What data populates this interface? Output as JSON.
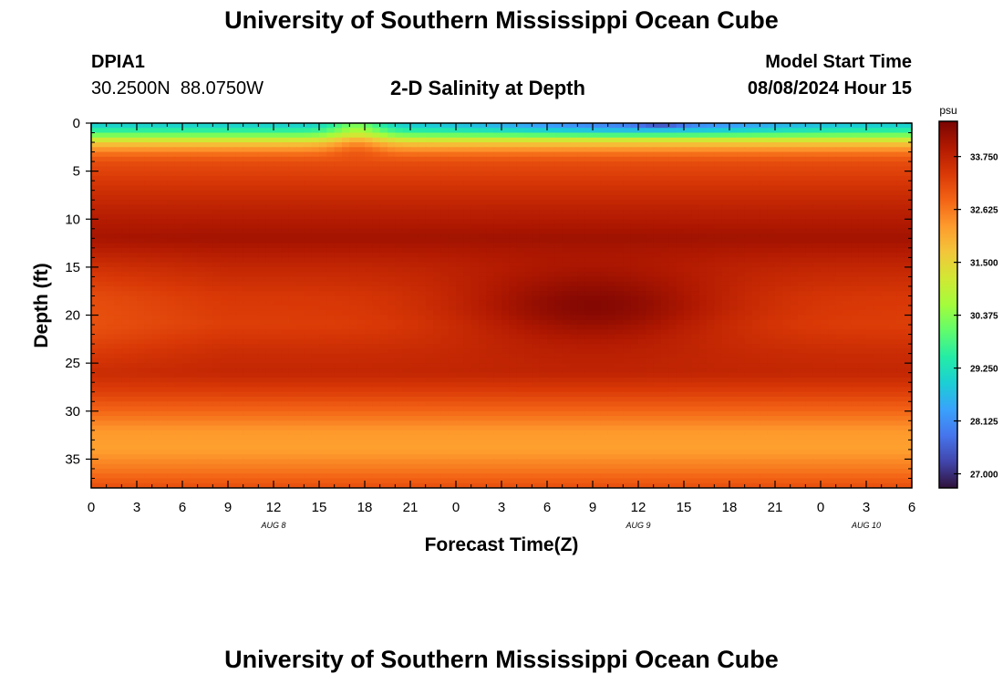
{
  "header": {
    "title": "University of Southern Mississippi Ocean Cube",
    "station_id": "DPIA1",
    "coordinates": "30.2500N  88.0750W",
    "chart_title": "2-D Salinity at Depth",
    "model_start_label": "Model Start Time",
    "model_start_value": "08/08/2024 Hour 15"
  },
  "footer": {
    "title": "University of Southern Mississippi Ocean Cube"
  },
  "colors": {
    "scale": [
      "#30123b",
      "#4145ab",
      "#4675ed",
      "#39a2fc",
      "#1bcfd4",
      "#24eca6",
      "#61fc6c",
      "#a4fc3b",
      "#d1e834",
      "#f3c63a",
      "#fe9b2d",
      "#f36315",
      "#d93806",
      "#b11901",
      "#7a0402"
    ]
  },
  "chart_data": {
    "type": "heatmap",
    "title": "2-D Salinity at Depth",
    "xlabel": "Forecast Time(Z)",
    "ylabel": "Depth (ft)",
    "x_range_hours": [
      0,
      54
    ],
    "x_tick_labels": [
      "0",
      "3",
      "6",
      "9",
      "12",
      "15",
      "18",
      "21",
      "0",
      "3",
      "6",
      "9",
      "12",
      "15",
      "18",
      "21",
      "0",
      "3",
      "6"
    ],
    "date_labels": [
      {
        "text": "AUG 8",
        "hour": 12
      },
      {
        "text": "AUG 9",
        "hour": 36
      },
      {
        "text": "AUG 10",
        "hour": 51
      }
    ],
    "ylim": [
      0,
      38
    ],
    "y_ticks": [
      0,
      5,
      10,
      15,
      20,
      25,
      30,
      35
    ],
    "colorbar": {
      "unit": "psu",
      "range": [
        26.7,
        34.5
      ],
      "ticks": [
        "27.000",
        "28.125",
        "29.250",
        "30.375",
        "31.500",
        "32.625",
        "33.750"
      ]
    },
    "depth_profile": [
      {
        "depth": 0,
        "psu": 28.8
      },
      {
        "depth": 1,
        "psu": 29.8
      },
      {
        "depth": 2,
        "psu": 31.6
      },
      {
        "depth": 3,
        "psu": 32.6
      },
      {
        "depth": 4,
        "psu": 33.1
      },
      {
        "depth": 6,
        "psu": 33.4
      },
      {
        "depth": 9,
        "psu": 33.8
      },
      {
        "depth": 12,
        "psu": 34.1
      },
      {
        "depth": 15,
        "psu": 33.7
      },
      {
        "depth": 18,
        "psu": 33.4
      },
      {
        "depth": 21,
        "psu": 33.3
      },
      {
        "depth": 24,
        "psu": 33.6
      },
      {
        "depth": 26,
        "psu": 33.7
      },
      {
        "depth": 28,
        "psu": 33.3
      },
      {
        "depth": 30,
        "psu": 32.8
      },
      {
        "depth": 32,
        "psu": 32.3
      },
      {
        "depth": 34,
        "psu": 32.2
      },
      {
        "depth": 36,
        "psu": 32.6
      },
      {
        "depth": 38,
        "psu": 33.1
      }
    ],
    "surface_features": [
      {
        "name": "surface-fresh-low",
        "hour_center": 36,
        "hour_halfwidth": 10,
        "depth_max": 1.5,
        "psu": 27.8
      },
      {
        "name": "surface-minimum",
        "hour_center": 37.5,
        "hour_halfwidth": 1.5,
        "depth_max": 0.5,
        "psu": 26.9
      }
    ],
    "saline_core": {
      "hour_center": 33,
      "depth_center": 19,
      "psu": 34.5
    },
    "left_fresh_zone": {
      "hour_max": 9,
      "depth_center": 20,
      "psu": 32.9
    }
  }
}
